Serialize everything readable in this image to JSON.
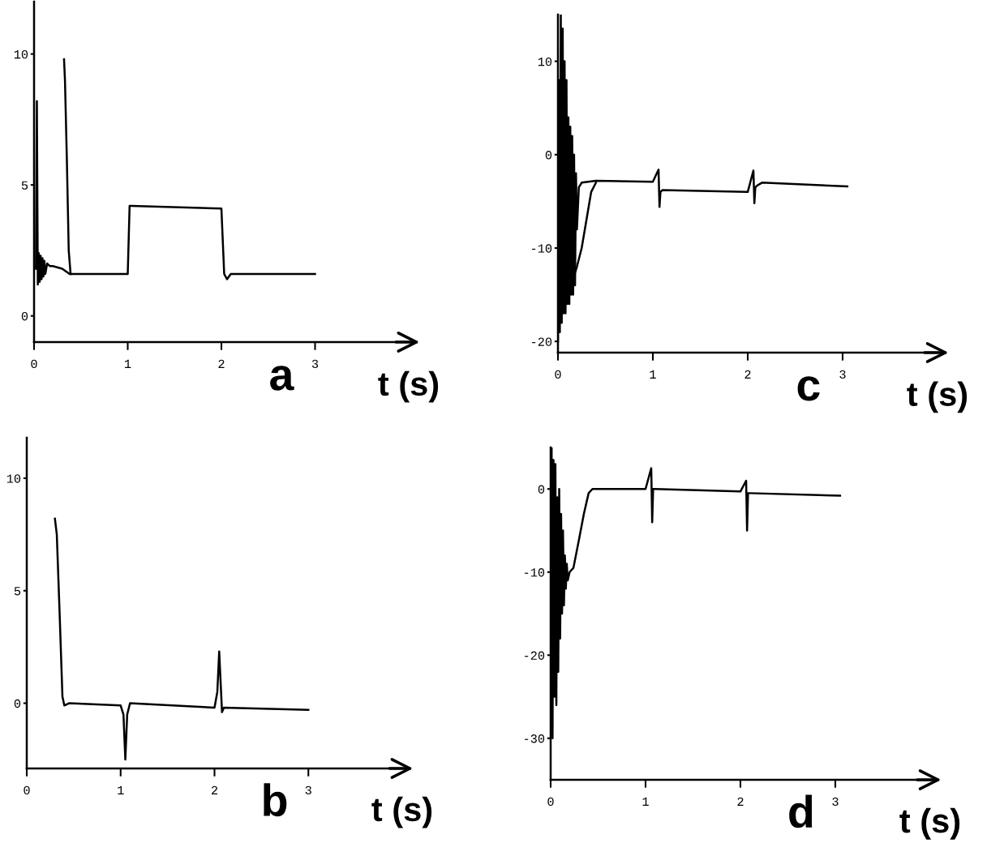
{
  "chart_data": [
    {
      "type": "line",
      "xlabel": "t (s)",
      "annotations": [
        "a"
      ],
      "xlim": [
        0,
        4
      ],
      "ylim": [
        -1,
        12
      ],
      "xticks": [
        0,
        1,
        2,
        3
      ],
      "yticks": [
        0,
        5,
        10
      ],
      "line_style": "solid",
      "series": [
        {
          "color": "#000000",
          "x": [
            0.02,
            0.03,
            0.04,
            0.05,
            0.06,
            0.07,
            0.08,
            0.09,
            0.1,
            0.11,
            0.12,
            0.14,
            0.17,
            0.2,
            0.3,
            0.38,
            1.0,
            1.02,
            1.04,
            2.0,
            2.03,
            2.06,
            2.1,
            3.0
          ],
          "values": [
            1.8,
            8.2,
            1.2,
            2.4,
            1.3,
            2.3,
            1.4,
            2.2,
            1.5,
            2.1,
            1.6,
            2.0,
            1.9,
            1.9,
            1.8,
            1.6,
            1.6,
            4.2,
            4.2,
            4.1,
            1.6,
            1.4,
            1.6,
            1.6
          ]
        },
        {
          "color": "#000000",
          "x": [
            0.32,
            0.33,
            0.35,
            0.37,
            0.39
          ],
          "values": [
            9.8,
            9.0,
            6.0,
            2.5,
            1.6
          ]
        }
      ]
    },
    {
      "type": "line",
      "xlabel": "t (s)",
      "annotations": [
        "c"
      ],
      "xlim": [
        0,
        4
      ],
      "ylim": [
        -21.2,
        15
      ],
      "xticks": [
        0,
        1,
        2,
        3
      ],
      "yticks": [
        -20,
        -10,
        0,
        10
      ],
      "line_style": "solid",
      "series": [
        {
          "color": "#000000",
          "x": [
            0,
            0.01,
            0.02,
            0.03,
            0.04,
            0.05,
            0.06,
            0.07,
            0.08,
            0.09,
            0.1,
            0.11,
            0.12,
            0.13,
            0.14,
            0.15,
            0.16,
            0.17,
            0.18,
            0.19,
            0.2,
            0.22,
            0.25,
            0.4,
            1.0,
            1.06,
            1.07,
            1.08,
            1.1,
            2.0,
            2.06,
            2.07,
            2.08,
            2.1,
            2.15,
            3.05
          ],
          "values": [
            -20,
            8,
            -19,
            15,
            -18,
            13.5,
            -17,
            10,
            -17,
            8,
            -16,
            4,
            -16,
            3,
            -15,
            2,
            -15,
            0,
            -14,
            -2,
            -8,
            -3.5,
            -3.0,
            -2.8,
            -2.9,
            -1.6,
            -5.6,
            -4.0,
            -3.8,
            -4.0,
            -1.7,
            -5.2,
            -3.5,
            -3.3,
            -3.0,
            -3.4
          ]
        },
        {
          "color": "#000000",
          "x": [
            0.12,
            0.15,
            0.2,
            0.25,
            0.3,
            0.35,
            0.4
          ],
          "values": [
            -14,
            -13.6,
            -12,
            -10,
            -7,
            -4,
            -3.0
          ]
        }
      ]
    },
    {
      "type": "line",
      "xlabel": "t (s)",
      "annotations": [
        "b"
      ],
      "xlim": [
        0,
        4
      ],
      "ylim": [
        -2.9,
        11.8
      ],
      "xticks": [
        0,
        1,
        2,
        3
      ],
      "yticks": [
        0,
        5,
        10
      ],
      "line_style": "solid",
      "series": [
        {
          "color": "#000000",
          "x": [
            0.3,
            0.32,
            0.35,
            0.38,
            0.4,
            0.45,
            1.0,
            1.03,
            1.05,
            1.07,
            1.1,
            2.0,
            2.03,
            2.05,
            2.08,
            2.1,
            3.0
          ],
          "values": [
            8.2,
            7.5,
            4.0,
            0.3,
            -0.1,
            0,
            -0.1,
            -0.5,
            -2.5,
            -0.5,
            0,
            -0.2,
            0.5,
            2.3,
            -0.4,
            -0.2,
            -0.3
          ]
        }
      ]
    },
    {
      "type": "line",
      "xlabel": "t (s)",
      "annotations": [
        "d"
      ],
      "xlim": [
        0,
        4
      ],
      "ylim": [
        -35,
        5
      ],
      "xticks": [
        0,
        1,
        2,
        3
      ],
      "yticks": [
        -30,
        -20,
        -10,
        0
      ],
      "line_style": "solid",
      "series": [
        {
          "color": "#000000",
          "x": [
            0,
            0.01,
            0.02,
            0.03,
            0.04,
            0.05,
            0.06,
            0.07,
            0.08,
            0.09,
            0.1,
            0.11,
            0.12,
            0.13,
            0.14,
            0.15,
            0.16,
            0.17,
            0.18,
            0.2,
            0.24,
            0.3,
            0.35,
            0.4,
            0.44,
            0.5,
            1.0,
            1.06,
            1.07,
            1.08,
            1.1,
            2.0,
            2.06,
            2.07,
            2.08,
            2.1,
            3.05
          ],
          "values": [
            -21,
            5,
            -30,
            3.5,
            -25,
            3,
            -26,
            -1,
            -22,
            0,
            -18,
            -3,
            -15,
            -5,
            -14,
            -8,
            -12,
            -9,
            -11,
            -10,
            -9.5,
            -6,
            -3,
            -0.5,
            0,
            0,
            0,
            2.5,
            -4,
            0,
            0,
            -0.3,
            1,
            -5,
            -0.5,
            -0.5,
            -0.8
          ]
        }
      ]
    }
  ]
}
